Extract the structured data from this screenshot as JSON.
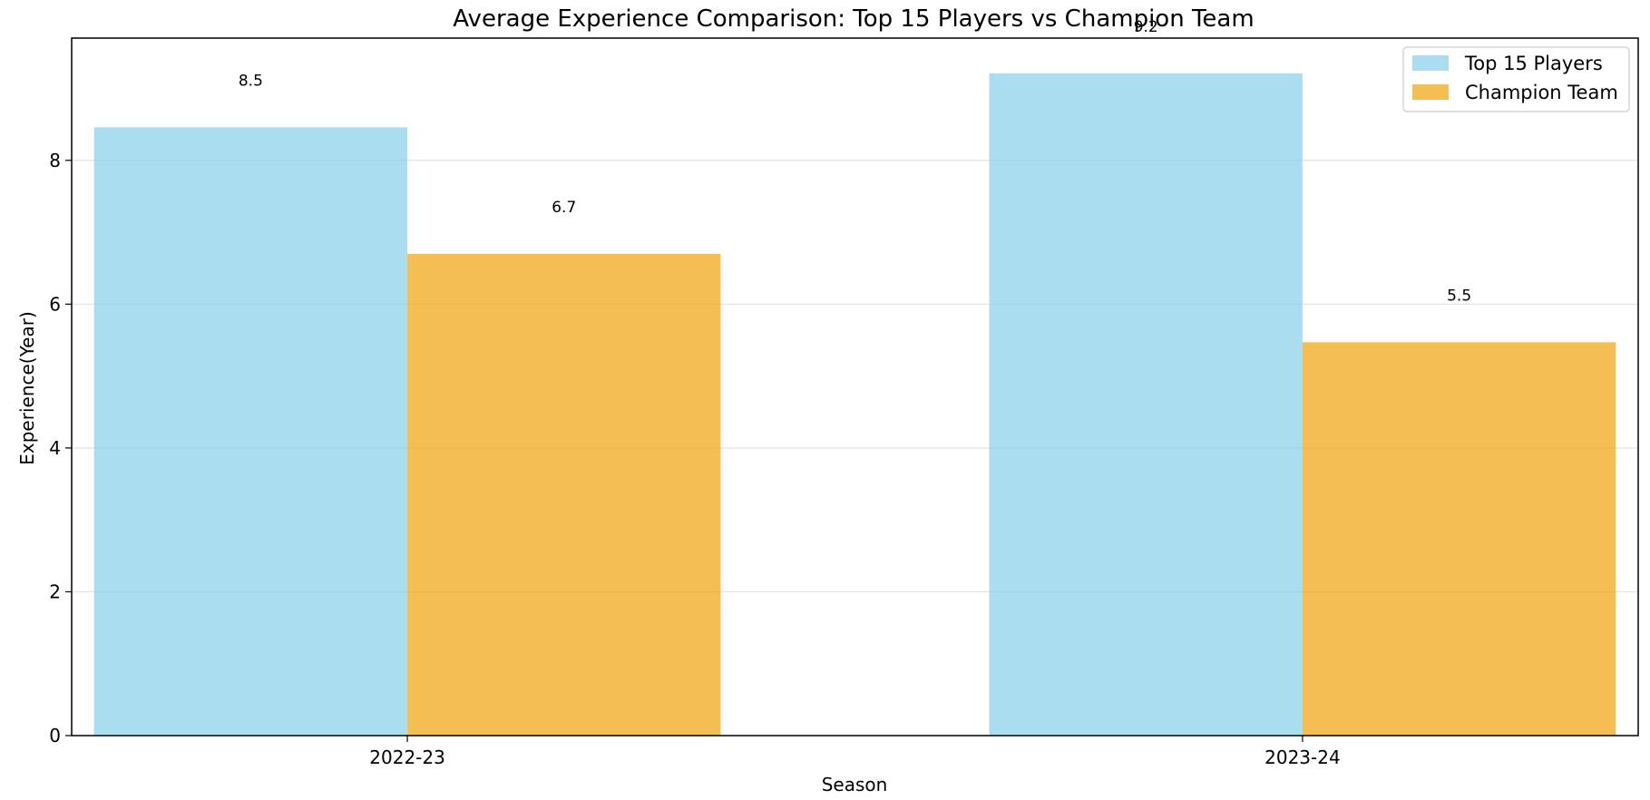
{
  "chart_data": {
    "type": "bar",
    "title": "Average Experience Comparison: Top 15 Players vs Champion Team",
    "xlabel": "Season",
    "ylabel": "Experience(Year)",
    "categories": [
      "2022-23",
      "2023-24"
    ],
    "series": [
      {
        "name": "Top 15 Players",
        "values": [
          8.46,
          9.21
        ],
        "labels": [
          "8.5",
          "9.2"
        ],
        "color": "#87CEEB"
      },
      {
        "name": "Champion Team",
        "values": [
          6.7,
          5.47
        ],
        "labels": [
          "6.7",
          "5.5"
        ],
        "color": "#F0A30A"
      }
    ],
    "ylim": [
      0,
      9.7
    ],
    "yticks": [
      0,
      2,
      4,
      6,
      8
    ],
    "grid": true,
    "legend_position": "top-right"
  }
}
